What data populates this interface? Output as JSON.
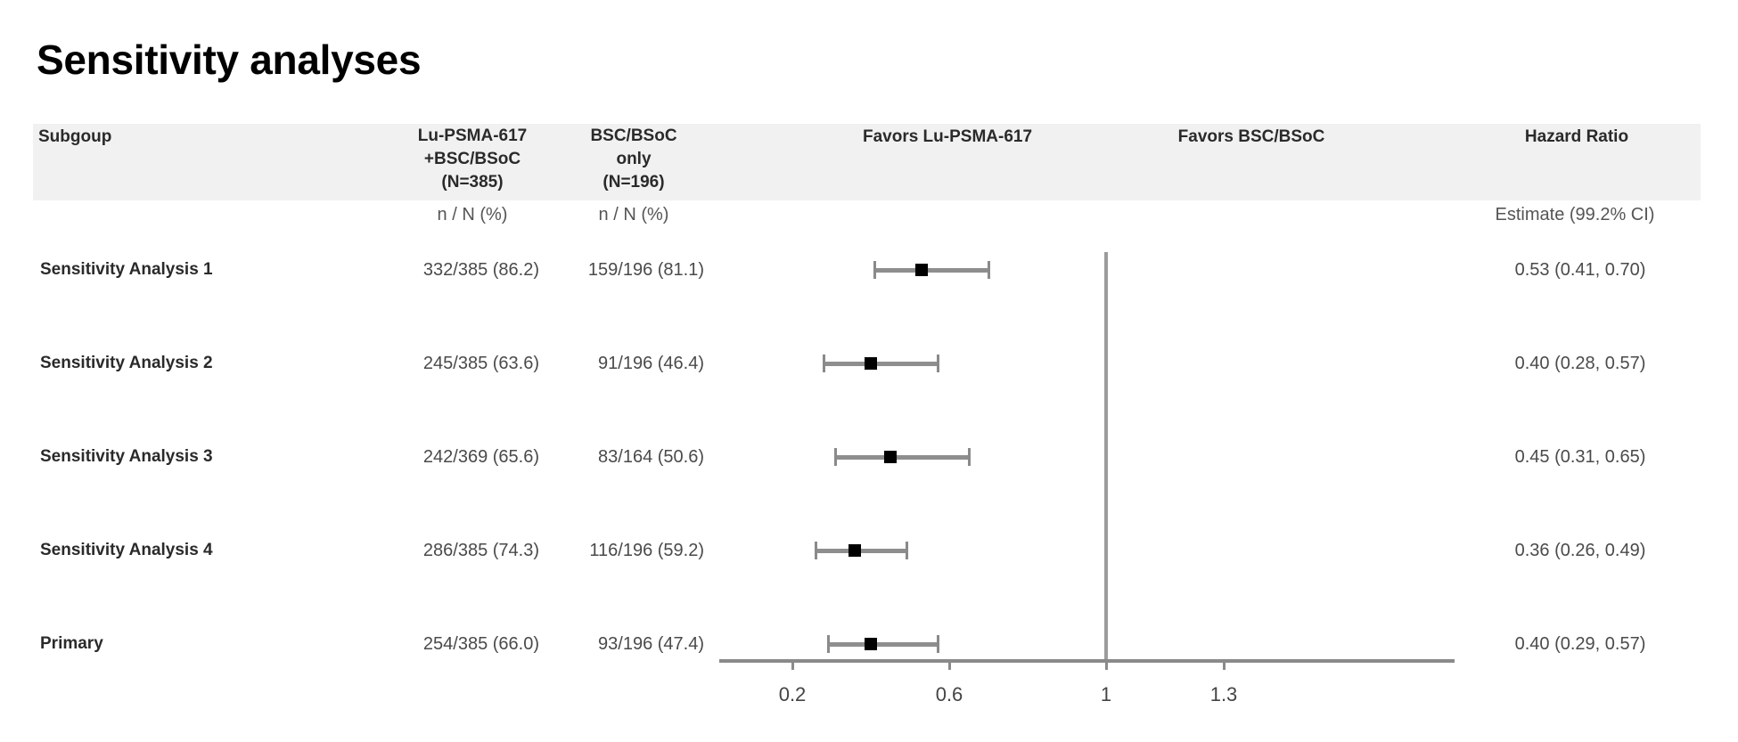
{
  "title": "Sensitivity analyses",
  "header": {
    "subgroup": "Subgoup",
    "arm1": {
      "line1": "Lu-PSMA-617",
      "line2": "+BSC/BSoC",
      "line3": "(N=385)",
      "sub": "n / N (%)"
    },
    "arm2": {
      "line1": "BSC/BSoC",
      "line2": "only",
      "line3": "(N=196)",
      "sub": "n / N (%)"
    },
    "favors_left": "Favors Lu-PSMA-617",
    "favors_right": "Favors BSC/BSoC",
    "hazard_ratio": "Hazard Ratio",
    "hr_sub": "Estimate (99.2% CI)"
  },
  "rows": [
    {
      "label": "Sensitivity Analysis 1",
      "arm1": "332/385 (86.2)",
      "arm2": "159/196 (81.1)",
      "hr_text": "0.53 (0.41, 0.70)",
      "est": 0.53,
      "lo": 0.41,
      "hi": 0.7
    },
    {
      "label": "Sensitivity Analysis 2",
      "arm1": "245/385 (63.6)",
      "arm2": "91/196 (46.4)",
      "hr_text": "0.40 (0.28, 0.57)",
      "est": 0.4,
      "lo": 0.28,
      "hi": 0.57
    },
    {
      "label": "Sensitivity Analysis 3",
      "arm1": "242/369 (65.6)",
      "arm2": "83/164 (50.6)",
      "hr_text": "0.45 (0.31, 0.65)",
      "est": 0.45,
      "lo": 0.31,
      "hi": 0.65
    },
    {
      "label": "Sensitivity Analysis 4",
      "arm1": "286/385 (74.3)",
      "arm2": "116/196 (59.2)",
      "hr_text": "0.36 (0.26, 0.49)",
      "est": 0.36,
      "lo": 0.26,
      "hi": 0.49
    },
    {
      "label": "Primary",
      "arm1": "254/385 (66.0)",
      "arm2": "93/196 (47.4)",
      "hr_text": "0.40 (0.29, 0.57)",
      "est": 0.4,
      "lo": 0.29,
      "hi": 0.57
    }
  ],
  "axis": {
    "ticks": [
      {
        "value": 0.2,
        "label": "0.2"
      },
      {
        "value": 0.6,
        "label": "0.6"
      },
      {
        "value": 1,
        "label": "1"
      },
      {
        "value": 1.3,
        "label": "1.3"
      }
    ],
    "reference": 1
  },
  "colors": {
    "header_band": "#f1f1f1",
    "marker": "#000000",
    "ci_line": "#8e8e8e",
    "reference_line": "#9c9c9c"
  },
  "chart_data": {
    "type": "forest",
    "title": "Sensitivity analyses",
    "xlabel": "Hazard Ratio",
    "ylabel": "Subgoup",
    "x_ticks": [
      0.2,
      0.6,
      1,
      1.3
    ],
    "xlim": [
      0.01,
      1.89
    ],
    "reference_line": 1,
    "left_label": "Favors Lu-PSMA-617",
    "right_label": "Favors BSC/BSoC",
    "columns": [
      "Subgoup",
      "Lu-PSMA-617 +BSC/BSoC (N=385) n / N (%)",
      "BSC/BSoC only (N=196) n / N (%)",
      "Hazard Ratio Estimate (99.2% CI)"
    ],
    "categories": [
      "Sensitivity Analysis 1",
      "Sensitivity Analysis 2",
      "Sensitivity Analysis 3",
      "Sensitivity Analysis 4",
      "Primary"
    ],
    "series": [
      {
        "name": "Hazard Ratio estimate",
        "values": [
          0.53,
          0.4,
          0.45,
          0.36,
          0.4
        ]
      },
      {
        "name": "99.2% CI lower",
        "values": [
          0.41,
          0.28,
          0.31,
          0.26,
          0.29
        ]
      },
      {
        "name": "99.2% CI upper",
        "values": [
          0.7,
          0.57,
          0.65,
          0.49,
          0.57
        ]
      }
    ],
    "table": {
      "arm1_events": [
        "332/385 (86.2)",
        "245/385 (63.6)",
        "242/369 (65.6)",
        "286/385 (74.3)",
        "254/385 (66.0)"
      ],
      "arm2_events": [
        "159/196 (81.1)",
        "91/196 (46.4)",
        "83/164 (50.6)",
        "116/196 (59.2)",
        "93/196 (47.4)"
      ]
    },
    "grid": false,
    "legend": null
  }
}
